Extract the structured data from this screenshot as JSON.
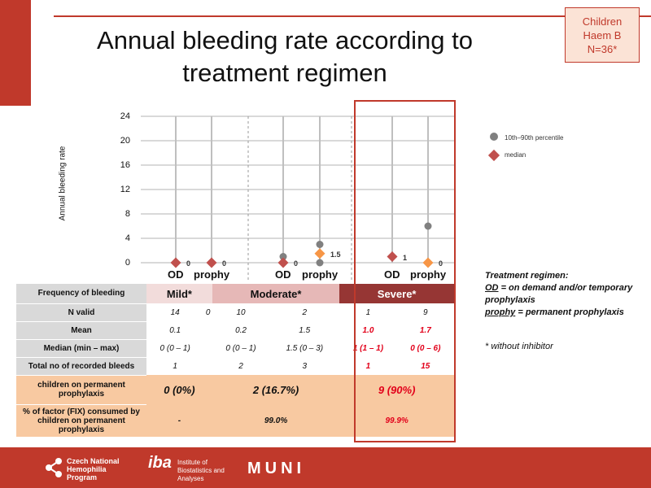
{
  "title": "Annual bleeding rate according to treatment regimen",
  "badge": [
    "Children",
    "Haem B",
    "N=36*"
  ],
  "chart_data": {
    "type": "scatter",
    "ylabel": "Annual bleeding rate",
    "ylim": [
      0,
      24
    ],
    "yticks": [
      0,
      4,
      8,
      12,
      16,
      20,
      24
    ],
    "groups": [
      "Mild*",
      "Moderate*",
      "Severe*"
    ],
    "categories": [
      "OD",
      "prophy",
      "OD",
      "prophy",
      "OD",
      "prophy"
    ],
    "series": [
      {
        "name": "10th–90th percentile",
        "points": [
          [
            2,
            1
          ],
          [
            3,
            3
          ],
          [
            3,
            0
          ],
          [
            5,
            6
          ]
        ]
      },
      {
        "name": "median",
        "values": [
          0,
          0,
          0,
          1.5,
          1,
          0
        ]
      }
    ],
    "data_labels": [
      "0",
      "0",
      "0",
      "1.5",
      "1",
      "0"
    ]
  },
  "legend": {
    "percentile": "10th–90th percentile",
    "median": "median"
  },
  "regimen_note": {
    "heading": "Treatment regimen:",
    "od_term": "OD",
    "od_text": "= on demand and/or temporary prophylaxis",
    "prophy_term": "prophy",
    "prophy_text": "= permanent prophylaxis"
  },
  "footnote": "* without inhibitor",
  "table": {
    "header": {
      "label": "Frequency of bleeding",
      "groups": [
        "Mild*",
        "Moderate*",
        "Severe*"
      ]
    },
    "rows": [
      {
        "label": "N valid",
        "cells": [
          "14",
          "0",
          "10",
          "2",
          "1",
          "9"
        ]
      },
      {
        "label": "Mean",
        "cells": [
          "0.1",
          "",
          "0.2",
          "1.5",
          "1.0",
          "1.7"
        ]
      },
      {
        "label": "Median (min – max)",
        "cells": [
          "0 (0 – 1)",
          "",
          "0 (0 – 1)",
          "1.5 (0 – 3)",
          "1 (1 – 1)",
          "0 (0 – 6)"
        ]
      },
      {
        "label": "Total no of recorded bleeds",
        "cells": [
          "1",
          "",
          "2",
          "3",
          "1",
          "15"
        ]
      }
    ],
    "children_row": {
      "label": "children on permanent prophylaxis",
      "cells": [
        "0 (0%)",
        "2 (16.7%)",
        "9 (90%)"
      ]
    },
    "factor_row": {
      "label": "% of factor (FIX) consumed by children on permanent prophylaxis",
      "cells": [
        "-",
        "99.0%",
        "99.9%"
      ]
    }
  },
  "footer": {
    "program": "Czech National Hemophilia Program",
    "iba_logo": "iba",
    "iba_text": "Institute of Biostatistics and Analyses",
    "muni": "MUNI"
  },
  "colors": {
    "accent": "#c0392b",
    "median": "#c0504d",
    "median_prophy": "#f79646",
    "percentile": "#808080"
  }
}
